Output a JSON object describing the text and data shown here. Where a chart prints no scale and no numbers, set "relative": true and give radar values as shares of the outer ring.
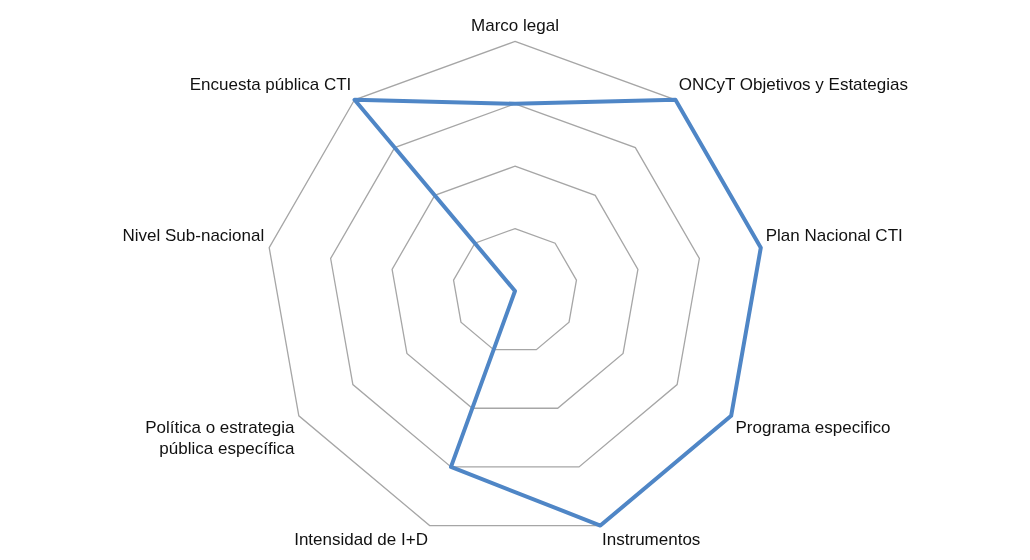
{
  "chart_data": {
    "type": "radar",
    "relative": true,
    "grid": true,
    "legend": false,
    "marker": "none",
    "line_style": "solid",
    "categories": [
      "Marco legal",
      "ONCyT Objetivos y Estategias",
      "Plan Nacional CTI",
      "Programa especifico",
      "Instrumentos",
      "Intensidad de I+D",
      "Política o estrategia pública específica",
      "Nivel Sub-nacional",
      "Encuesta pública CTI"
    ],
    "series": [
      {
        "color": "#4f86c6",
        "values": [
          0.75,
          1,
          1,
          1,
          1,
          0.75,
          0,
          0,
          1
        ]
      }
    ]
  }
}
